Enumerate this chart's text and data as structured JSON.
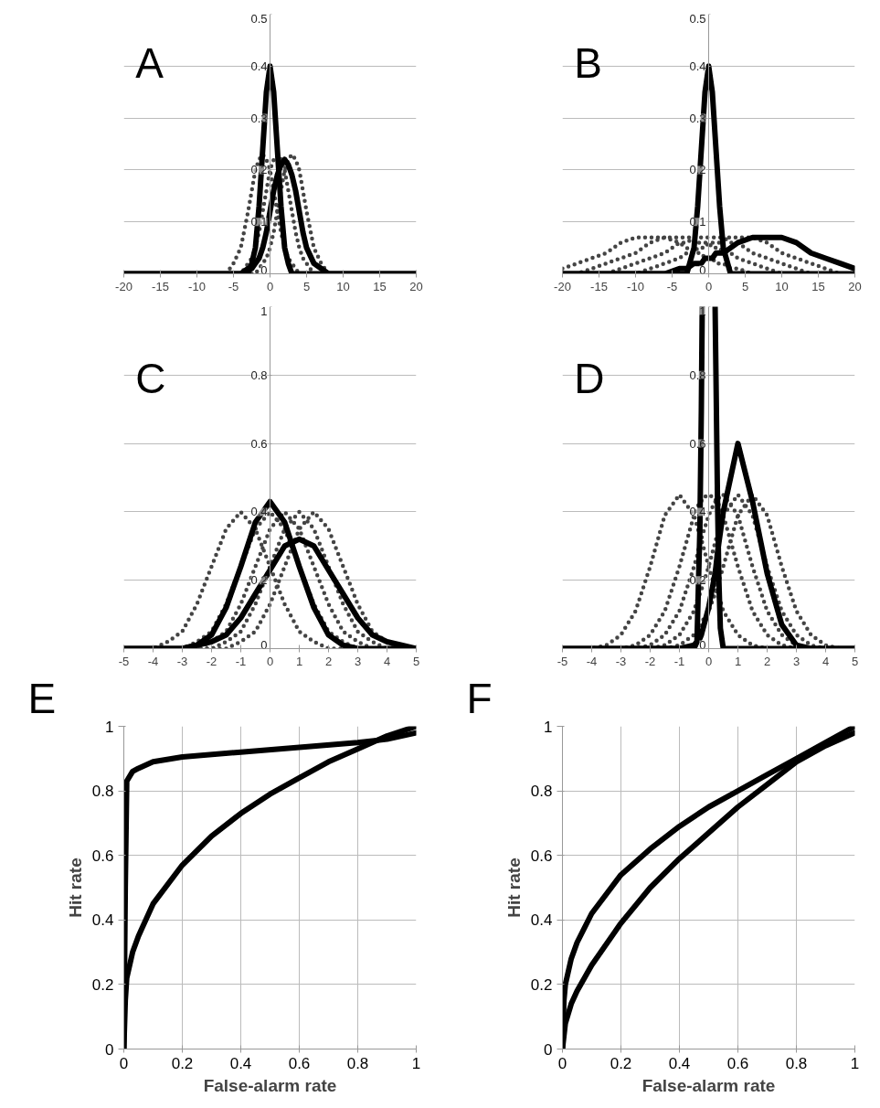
{
  "chart_data": [
    {
      "type": "line",
      "title": "A",
      "x": [
        -20,
        -8,
        -6,
        -5,
        -4,
        -3,
        -2.5,
        -2,
        -1.5,
        -1,
        -0.5,
        0,
        0.5,
        1,
        1.5,
        2,
        2.5,
        3,
        3.5,
        4,
        4.5,
        5,
        6,
        7,
        8,
        9,
        20
      ],
      "xlim": [
        -20,
        20
      ],
      "xticks": [
        -20,
        -15,
        -10,
        -5,
        0,
        5,
        10,
        15,
        20
      ],
      "ylim": [
        0,
        0.5
      ],
      "yticks": [
        0,
        0.1,
        0.2,
        0.3,
        0.4,
        0.5
      ],
      "grid": "y",
      "series": [
        {
          "color": "#444444",
          "line_style": "dotted",
          "values": [
            0,
            0,
            0,
            0.02,
            0.05,
            0.12,
            0.16,
            0.2,
            0.22,
            0.23,
            0.22,
            0.2,
            0.16,
            0.12,
            0.08,
            0.05,
            0.03,
            0.02,
            0.01,
            0,
            0,
            0,
            0,
            0,
            0,
            0,
            0
          ]
        },
        {
          "color": "#444444",
          "line_style": "dotted",
          "values": [
            0,
            0,
            0,
            0,
            0,
            0.02,
            0.03,
            0.05,
            0.08,
            0.12,
            0.16,
            0.2,
            0.22,
            0.23,
            0.22,
            0.2,
            0.16,
            0.12,
            0.08,
            0.05,
            0.03,
            0.02,
            0,
            0,
            0,
            0,
            0
          ]
        },
        {
          "color": "#444444",
          "line_style": "dotted",
          "values": [
            0,
            0,
            0,
            0,
            0,
            0,
            0,
            0,
            0.01,
            0.02,
            0.03,
            0.05,
            0.08,
            0.12,
            0.16,
            0.2,
            0.22,
            0.23,
            0.22,
            0.2,
            0.16,
            0.12,
            0.05,
            0.02,
            0,
            0,
            0
          ]
        },
        {
          "color": "#000000",
          "line_style": "solid",
          "values": [
            0,
            0,
            0,
            0,
            0,
            0,
            0.02,
            0.05,
            0.13,
            0.24,
            0.35,
            0.4,
            0.35,
            0.24,
            0.13,
            0.05,
            0.02,
            0,
            0,
            0,
            0,
            0,
            0,
            0,
            0,
            0,
            0
          ]
        },
        {
          "color": "#000000",
          "line_style": "solid",
          "values": [
            0,
            0,
            0,
            0,
            0,
            0.01,
            0.01,
            0.02,
            0.03,
            0.05,
            0.08,
            0.12,
            0.16,
            0.19,
            0.21,
            0.22,
            0.21,
            0.19,
            0.16,
            0.12,
            0.08,
            0.05,
            0.02,
            0.01,
            0,
            0,
            0
          ]
        }
      ]
    },
    {
      "type": "line",
      "title": "B",
      "x": [
        -20,
        -18,
        -16,
        -14,
        -12,
        -10,
        -8,
        -6,
        -4,
        -3,
        -2,
        -1.5,
        -1,
        -0.5,
        0,
        0.5,
        1,
        1.5,
        2,
        3,
        4,
        6,
        8,
        10,
        12,
        14,
        16,
        18,
        20
      ],
      "xlim": [
        -20,
        20
      ],
      "xticks": [
        -20,
        -15,
        -10,
        -5,
        0,
        5,
        10,
        15,
        20
      ],
      "ylim": [
        0,
        0.5
      ],
      "yticks": [
        0,
        0.1,
        0.2,
        0.3,
        0.4,
        0.5
      ],
      "grid": "y",
      "series": [
        {
          "color": "#444444",
          "line_style": "dotted",
          "values": [
            0.01,
            0.02,
            0.03,
            0.04,
            0.06,
            0.07,
            0.07,
            0.07,
            0.06,
            0.05,
            0.04,
            0.04,
            0.04,
            0.03,
            0.03,
            0.03,
            0.02,
            0.02,
            0.02,
            0.01,
            0.01,
            0,
            0,
            0,
            0,
            0,
            0,
            0,
            0
          ]
        },
        {
          "color": "#444444",
          "line_style": "dotted",
          "values": [
            0,
            0,
            0.01,
            0.02,
            0.03,
            0.04,
            0.06,
            0.07,
            0.07,
            0.07,
            0.07,
            0.06,
            0.06,
            0.06,
            0.06,
            0.05,
            0.05,
            0.05,
            0.04,
            0.04,
            0.03,
            0.02,
            0.01,
            0,
            0,
            0,
            0,
            0,
            0
          ]
        },
        {
          "color": "#444444",
          "line_style": "dotted",
          "values": [
            0,
            0,
            0,
            0,
            0.01,
            0.02,
            0.03,
            0.04,
            0.06,
            0.06,
            0.07,
            0.07,
            0.07,
            0.07,
            0.07,
            0.07,
            0.07,
            0.07,
            0.07,
            0.06,
            0.06,
            0.04,
            0.03,
            0.02,
            0.01,
            0,
            0,
            0,
            0
          ]
        },
        {
          "color": "#444444",
          "line_style": "dotted",
          "values": [
            0,
            0,
            0,
            0,
            0,
            0,
            0.01,
            0.02,
            0.03,
            0.04,
            0.04,
            0.05,
            0.05,
            0.05,
            0.06,
            0.06,
            0.06,
            0.06,
            0.07,
            0.07,
            0.07,
            0.07,
            0.06,
            0.04,
            0.03,
            0.02,
            0.01,
            0,
            0
          ]
        },
        {
          "color": "#000000",
          "line_style": "solid",
          "values": [
            0,
            0,
            0,
            0,
            0,
            0,
            0,
            0,
            0,
            0,
            0.05,
            0.13,
            0.24,
            0.35,
            0.4,
            0.35,
            0.24,
            0.13,
            0.05,
            0,
            0,
            0,
            0,
            0,
            0,
            0,
            0,
            0,
            0
          ]
        },
        {
          "color": "#000000",
          "line_style": "solid",
          "values": [
            0,
            0,
            0,
            0,
            0,
            0,
            0,
            0,
            0.01,
            0.01,
            0.02,
            0.02,
            0.02,
            0.03,
            0.03,
            0.03,
            0.04,
            0.04,
            0.04,
            0.05,
            0.06,
            0.07,
            0.07,
            0.07,
            0.06,
            0.04,
            0.03,
            0.02,
            0.01
          ]
        }
      ]
    },
    {
      "type": "line",
      "title": "C",
      "x": [
        -5,
        -4,
        -3.5,
        -3,
        -2.5,
        -2,
        -1.5,
        -1,
        -0.5,
        0,
        0.5,
        1,
        1.5,
        2,
        2.5,
        3,
        3.5,
        4,
        4.5,
        5
      ],
      "xlim": [
        -5,
        5
      ],
      "xticks": [
        -5,
        -4,
        -3,
        -2,
        -1,
        0,
        1,
        2,
        3,
        4,
        5
      ],
      "ylim": [
        0,
        1
      ],
      "yticks": [
        0,
        0.2,
        0.4,
        0.6,
        0.8,
        1
      ],
      "grid": "y",
      "series": [
        {
          "color": "#444444",
          "line_style": "dotted",
          "values": [
            0,
            0,
            0.02,
            0.05,
            0.13,
            0.24,
            0.35,
            0.4,
            0.35,
            0.24,
            0.13,
            0.05,
            0.02,
            0,
            0,
            0,
            0,
            0,
            0,
            0
          ]
        },
        {
          "color": "#444444",
          "line_style": "dotted",
          "values": [
            0,
            0,
            0,
            0,
            0.02,
            0.05,
            0.13,
            0.24,
            0.35,
            0.4,
            0.35,
            0.24,
            0.13,
            0.05,
            0.02,
            0,
            0,
            0,
            0,
            0
          ]
        },
        {
          "color": "#444444",
          "line_style": "dotted",
          "values": [
            0,
            0,
            0,
            0,
            0,
            0.02,
            0.05,
            0.13,
            0.24,
            0.35,
            0.4,
            0.35,
            0.24,
            0.13,
            0.05,
            0.02,
            0,
            0,
            0,
            0
          ]
        },
        {
          "color": "#444444",
          "line_style": "dotted",
          "values": [
            0,
            0,
            0,
            0,
            0,
            0,
            0.02,
            0.05,
            0.13,
            0.24,
            0.35,
            0.4,
            0.35,
            0.24,
            0.13,
            0.05,
            0.02,
            0,
            0,
            0
          ]
        },
        {
          "color": "#444444",
          "line_style": "dotted",
          "values": [
            0,
            0,
            0,
            0,
            0,
            0,
            0,
            0.02,
            0.05,
            0.13,
            0.24,
            0.35,
            0.4,
            0.35,
            0.24,
            0.13,
            0.05,
            0.02,
            0,
            0
          ]
        },
        {
          "color": "#000000",
          "line_style": "solid",
          "values": [
            0,
            0,
            0,
            0,
            0.01,
            0.04,
            0.12,
            0.24,
            0.37,
            0.43,
            0.37,
            0.24,
            0.12,
            0.04,
            0.01,
            0,
            0,
            0,
            0,
            0
          ]
        },
        {
          "color": "#000000",
          "line_style": "solid",
          "values": [
            0,
            0,
            0,
            0,
            0.01,
            0.02,
            0.04,
            0.09,
            0.16,
            0.23,
            0.3,
            0.32,
            0.3,
            0.23,
            0.16,
            0.09,
            0.04,
            0.02,
            0.01,
            0
          ]
        }
      ]
    },
    {
      "type": "line",
      "title": "D",
      "x": [
        -5,
        -4,
        -3.5,
        -3,
        -2.5,
        -2,
        -1.5,
        -1,
        -0.5,
        -0.4,
        -0.3,
        -0.25,
        -0.22,
        0,
        0.22,
        0.25,
        0.3,
        0.35,
        0.4,
        0.5,
        1,
        1.5,
        2,
        2.5,
        3,
        3.5,
        4,
        4.5,
        5
      ],
      "xlim": [
        -5,
        5
      ],
      "xticks": [
        -5,
        -4,
        -3,
        -2,
        -1,
        0,
        1,
        2,
        3,
        4,
        5
      ],
      "ylim": [
        0,
        1
      ],
      "yticks": [
        0,
        0.2,
        0.4,
        0.6,
        0.8,
        1
      ],
      "grid": "y",
      "series": [
        {
          "color": "#444444",
          "line_style": "dotted",
          "values": [
            0,
            0,
            0.01,
            0.04,
            0.11,
            0.24,
            0.39,
            0.45,
            0.39,
            0.36,
            0.33,
            0.32,
            0.31,
            0.24,
            0.18,
            0.17,
            0.16,
            0.15,
            0.14,
            0.11,
            0.04,
            0.01,
            0,
            0,
            0,
            0,
            0,
            0,
            0
          ]
        },
        {
          "color": "#444444",
          "line_style": "dotted",
          "values": [
            0,
            0,
            0,
            0,
            0.01,
            0.04,
            0.11,
            0.24,
            0.39,
            0.41,
            0.43,
            0.43,
            0.44,
            0.45,
            0.44,
            0.43,
            0.43,
            0.42,
            0.41,
            0.39,
            0.24,
            0.11,
            0.04,
            0.01,
            0,
            0,
            0,
            0,
            0
          ]
        },
        {
          "color": "#444444",
          "line_style": "dotted",
          "values": [
            0,
            0,
            0,
            0,
            0,
            0.01,
            0.04,
            0.11,
            0.24,
            0.27,
            0.31,
            0.32,
            0.33,
            0.39,
            0.43,
            0.43,
            0.44,
            0.44,
            0.45,
            0.45,
            0.39,
            0.24,
            0.11,
            0.04,
            0.01,
            0,
            0,
            0,
            0
          ]
        },
        {
          "color": "#444444",
          "line_style": "dotted",
          "values": [
            0,
            0,
            0,
            0,
            0,
            0,
            0.01,
            0.04,
            0.11,
            0.14,
            0.16,
            0.17,
            0.18,
            0.24,
            0.31,
            0.32,
            0.33,
            0.35,
            0.36,
            0.39,
            0.45,
            0.39,
            0.24,
            0.11,
            0.04,
            0.01,
            0,
            0,
            0
          ]
        },
        {
          "color": "#444444",
          "line_style": "dotted",
          "values": [
            0,
            0,
            0,
            0,
            0,
            0,
            0,
            0.01,
            0.04,
            0.05,
            0.06,
            0.07,
            0.08,
            0.11,
            0.16,
            0.17,
            0.19,
            0.2,
            0.21,
            0.24,
            0.39,
            0.45,
            0.39,
            0.24,
            0.11,
            0.04,
            0.01,
            0,
            0
          ]
        },
        {
          "color": "#000000",
          "line_style": "solid",
          "values": [
            0,
            0,
            0,
            0,
            0,
            0,
            0,
            0,
            0,
            0.02,
            0.35,
            0.7,
            1,
            null,
            1,
            0.8,
            0.45,
            0.2,
            0.06,
            0,
            0,
            0,
            0,
            0,
            0,
            0,
            0,
            0,
            0
          ]
        },
        {
          "color": "#000000",
          "line_style": "solid",
          "values": [
            0,
            0,
            0,
            0,
            0,
            0,
            0,
            0,
            0.01,
            0.02,
            0.03,
            0.04,
            0.05,
            0.12,
            0.22,
            0.24,
            0.28,
            0.31,
            0.34,
            0.4,
            0.6,
            0.43,
            0.22,
            0.07,
            0.01,
            0,
            0,
            0,
            0
          ]
        }
      ]
    },
    {
      "type": "line",
      "title": "E",
      "xlabel": "False-alarm rate",
      "ylabel": "Hit rate",
      "xlim": [
        0,
        1
      ],
      "xticks": [
        0,
        0.2,
        0.4,
        0.6,
        0.8,
        1
      ],
      "ylim": [
        0,
        1
      ],
      "yticks": [
        0,
        0.2,
        0.4,
        0.6,
        0.8,
        1
      ],
      "grid": true,
      "series": [
        {
          "color": "#000000",
          "line_style": "solid",
          "x": [
            0,
            0.005,
            0.01,
            0.03,
            0.05,
            0.1,
            0.2,
            0.4,
            0.6,
            0.8,
            0.9,
            1
          ],
          "values": [
            0,
            0.5,
            0.83,
            0.86,
            0.87,
            0.89,
            0.905,
            0.92,
            0.935,
            0.95,
            0.96,
            0.98
          ]
        },
        {
          "color": "#000000",
          "line_style": "solid",
          "x": [
            0,
            0.005,
            0.01,
            0.03,
            0.05,
            0.1,
            0.2,
            0.3,
            0.4,
            0.5,
            0.6,
            0.7,
            0.8,
            0.9,
            1
          ],
          "values": [
            0,
            0.15,
            0.22,
            0.3,
            0.35,
            0.45,
            0.57,
            0.66,
            0.73,
            0.79,
            0.84,
            0.89,
            0.93,
            0.97,
            1
          ]
        }
      ]
    },
    {
      "type": "line",
      "title": "F",
      "xlabel": "False-alarm rate",
      "ylabel": "Hit rate",
      "xlim": [
        0,
        1
      ],
      "xticks": [
        0,
        0.2,
        0.4,
        0.6,
        0.8,
        1
      ],
      "ylim": [
        0,
        1
      ],
      "yticks": [
        0,
        0.2,
        0.4,
        0.6,
        0.8,
        1
      ],
      "grid": true,
      "series": [
        {
          "color": "#000000",
          "line_style": "solid",
          "x": [
            0,
            0.005,
            0.01,
            0.03,
            0.05,
            0.1,
            0.2,
            0.3,
            0.4,
            0.5,
            0.6,
            0.7,
            0.8,
            0.9,
            1
          ],
          "values": [
            0,
            0.15,
            0.2,
            0.28,
            0.33,
            0.42,
            0.54,
            0.62,
            0.69,
            0.75,
            0.8,
            0.85,
            0.9,
            0.95,
            1
          ]
        },
        {
          "color": "#000000",
          "line_style": "solid",
          "x": [
            0,
            0.01,
            0.03,
            0.05,
            0.1,
            0.2,
            0.3,
            0.4,
            0.5,
            0.6,
            0.7,
            0.8,
            0.9,
            1
          ],
          "values": [
            0,
            0.08,
            0.14,
            0.18,
            0.26,
            0.39,
            0.5,
            0.59,
            0.67,
            0.75,
            0.82,
            0.89,
            0.94,
            0.98
          ]
        }
      ]
    }
  ]
}
